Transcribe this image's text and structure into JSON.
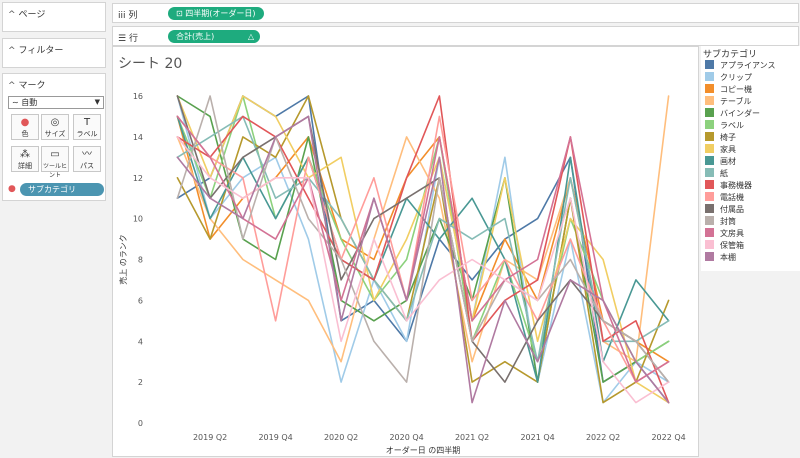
{
  "side": {
    "pages_label": "ページ",
    "filters_label": "フィルター",
    "marks_label": "マーク",
    "mark_type": "自動",
    "buttons": [
      "色",
      "サイズ",
      "ラベル",
      "詳細",
      "ツールヒント",
      "パス"
    ],
    "color_pill": "サブカテゴリ"
  },
  "shelves": {
    "columns_label": "列",
    "columns_pill": "四半期(オーダー日)",
    "rows_label": "行",
    "rows_pill": "合計(売上)",
    "pill_color": "#1eab7e"
  },
  "sheet_title": "シート 20",
  "legend_title": "サブカテゴリ",
  "chart_data": {
    "type": "line",
    "xlabel": "オーダー日 の四半期",
    "ylabel": "売上 のランク",
    "x_tick_labels": [
      "2019 Q2",
      "2019 Q4",
      "2020 Q2",
      "2020 Q4",
      "2021 Q2",
      "2021 Q4",
      "2022 Q2",
      "2022 Q4"
    ],
    "quarters": [
      "2019 Q1",
      "2019 Q2",
      "2019 Q3",
      "2019 Q4",
      "2020 Q1",
      "2020 Q2",
      "2020 Q3",
      "2020 Q4",
      "2021 Q1",
      "2021 Q2",
      "2021 Q3",
      "2021 Q4",
      "2022 Q1",
      "2022 Q2",
      "2022 Q3",
      "2022 Q4"
    ],
    "ylim": [
      0,
      16
    ],
    "y_ticks": [
      0,
      2,
      4,
      6,
      8,
      10,
      12,
      14,
      16
    ],
    "series": [
      {
        "name": "アプライアンス",
        "color": "#4e79a7",
        "values": [
          11,
          12,
          16,
          15,
          16,
          5,
          6,
          4,
          9,
          7,
          9,
          10,
          13,
          2,
          3,
          1
        ]
      },
      {
        "name": "クリップ",
        "color": "#a0cbe8",
        "values": [
          16,
          10,
          12,
          13,
          9,
          2,
          7,
          4,
          13,
          5,
          13,
          2,
          9,
          1,
          3,
          2
        ]
      },
      {
        "name": "コピー機",
        "color": "#f28e2b",
        "values": [
          15,
          9,
          11,
          12,
          14,
          9,
          8,
          12,
          14,
          5,
          9,
          6,
          12,
          5,
          4,
          3
        ]
      },
      {
        "name": "テーブル",
        "color": "#ffbe7d",
        "values": [
          14,
          10,
          8,
          7,
          6,
          3,
          9,
          14,
          11,
          3,
          8,
          7,
          12,
          4,
          3,
          16
        ]
      },
      {
        "name": "バインダー",
        "color": "#59a14f",
        "values": [
          16,
          15,
          9,
          8,
          14,
          6,
          5,
          6,
          10,
          6,
          12,
          2,
          11,
          2,
          3,
          4
        ]
      },
      {
        "name": "ラベル",
        "color": "#8cd17d",
        "values": [
          15,
          11,
          16,
          10,
          13,
          9,
          6,
          8,
          14,
          4,
          8,
          3,
          10,
          6,
          3,
          4
        ]
      },
      {
        "name": "椅子",
        "color": "#b6992d",
        "values": [
          12,
          9,
          14,
          13,
          16,
          10,
          7,
          5,
          12,
          2,
          3,
          2,
          11,
          1,
          2,
          6
        ]
      },
      {
        "name": "家具",
        "color": "#f1ce63",
        "values": [
          16,
          12,
          16,
          15,
          12,
          13,
          6,
          9,
          13,
          5,
          12,
          4,
          10,
          8,
          2,
          1
        ]
      },
      {
        "name": "画材",
        "color": "#499894",
        "values": [
          15,
          10,
          13,
          10,
          13,
          8,
          7,
          11,
          9,
          11,
          8,
          2,
          13,
          3,
          7,
          5
        ]
      },
      {
        "name": "紙",
        "color": "#86bcb6",
        "values": [
          13,
          14,
          15,
          11,
          12,
          10,
          7,
          5,
          10,
          9,
          10,
          3,
          12,
          4,
          4,
          5
        ]
      },
      {
        "name": "事務機器",
        "color": "#e15759",
        "values": [
          14,
          13,
          15,
          14,
          11,
          8,
          7,
          12,
          16,
          4,
          6,
          7,
          14,
          4,
          5,
          1
        ]
      },
      {
        "name": "電話機",
        "color": "#ff9d9a",
        "values": [
          15,
          13,
          12,
          5,
          13,
          8,
          12,
          6,
          15,
          6,
          8,
          5,
          9,
          5,
          2,
          3
        ]
      },
      {
        "name": "付属品",
        "color": "#79706e",
        "values": [
          16,
          11,
          13,
          14,
          15,
          7,
          10,
          11,
          12,
          4,
          2,
          5,
          7,
          5,
          4,
          2
        ]
      },
      {
        "name": "封筒",
        "color": "#bab0ac",
        "values": [
          11,
          16,
          9,
          14,
          10,
          8,
          4,
          2,
          12,
          4,
          7,
          6,
          8,
          5,
          4,
          2
        ]
      },
      {
        "name": "文房具",
        "color": "#d37295",
        "values": [
          15,
          13,
          10,
          9,
          12,
          6,
          11,
          6,
          14,
          5,
          7,
          8,
          14,
          6,
          2,
          3
        ]
      },
      {
        "name": "保管箱",
        "color": "#fabfd2",
        "values": [
          14,
          12,
          11,
          12,
          12,
          4,
          9,
          5,
          7,
          8,
          7,
          6,
          11,
          3,
          1,
          2
        ]
      },
      {
        "name": "本棚",
        "color": "#b07aa1",
        "values": [
          13,
          11,
          10,
          14,
          15,
          5,
          11,
          6,
          13,
          1,
          6,
          3,
          7,
          6,
          3,
          1
        ]
      }
    ]
  }
}
